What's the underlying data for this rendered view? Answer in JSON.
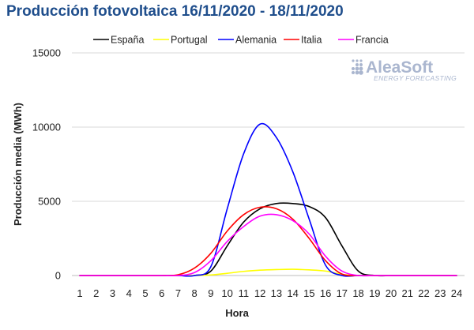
{
  "chart_data": {
    "type": "line",
    "title": "Producción fotovoltaica 16/11/2020 - 18/11/2020",
    "xlabel": "Hora",
    "ylabel": "Producción media (MWh)",
    "ylim": [
      0,
      15000
    ],
    "yticks": [
      0,
      5000,
      10000,
      15000
    ],
    "x": [
      1,
      2,
      3,
      4,
      5,
      6,
      7,
      8,
      9,
      10,
      11,
      12,
      13,
      14,
      15,
      16,
      17,
      18,
      19,
      20,
      21,
      22,
      23,
      24
    ],
    "legend_position": "top",
    "grid": "horizontal",
    "series": [
      {
        "name": "España",
        "color": "#000000",
        "values": [
          0,
          0,
          0,
          0,
          0,
          0,
          0,
          0,
          300,
          2000,
          3600,
          4500,
          4850,
          4850,
          4650,
          3900,
          2000,
          300,
          0,
          0,
          0,
          0,
          0,
          0
        ]
      },
      {
        "name": "Portugal",
        "color": "#ffff00",
        "values": [
          0,
          0,
          0,
          0,
          0,
          0,
          0,
          0,
          40,
          150,
          280,
          360,
          400,
          420,
          380,
          300,
          80,
          0,
          0,
          0,
          0,
          0,
          0,
          0
        ]
      },
      {
        "name": "Alemania",
        "color": "#0000ff",
        "values": [
          0,
          0,
          0,
          0,
          0,
          0,
          0,
          0,
          600,
          4500,
          8200,
          10200,
          9300,
          7000,
          3800,
          700,
          0,
          0,
          0,
          0,
          0,
          0,
          0,
          0
        ]
      },
      {
        "name": "Italia",
        "color": "#ff0000",
        "values": [
          0,
          0,
          0,
          0,
          0,
          0,
          50,
          500,
          1500,
          3000,
          4100,
          4600,
          4500,
          3800,
          2500,
          1000,
          100,
          0,
          0,
          0,
          0,
          0,
          0,
          0
        ]
      },
      {
        "name": "Francia",
        "color": "#ff00ff",
        "values": [
          0,
          0,
          0,
          0,
          0,
          0,
          0,
          200,
          1000,
          2300,
          3300,
          4000,
          4100,
          3700,
          2800,
          1300,
          300,
          0,
          0,
          0,
          0,
          0,
          0,
          0
        ]
      }
    ]
  },
  "logo": {
    "name": "AleaSoft",
    "tagline": "ENERGY FORECASTING"
  }
}
